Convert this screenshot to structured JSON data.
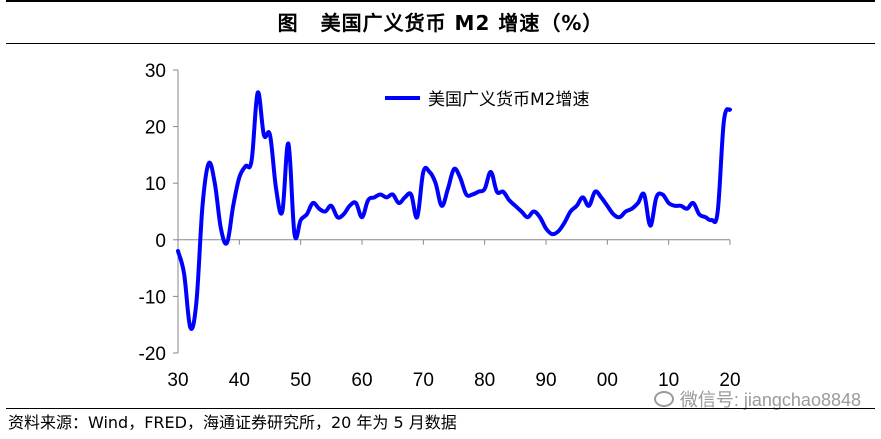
{
  "figure": {
    "label": "图",
    "title": "美国广义货币 M2 增速（%）",
    "source": "资料来源：Wind，FRED，海通证券研究所，20 年为 5 月数据",
    "watermark": "微信号: jiangchao8848"
  },
  "chart_data": {
    "type": "line",
    "title": "美国广义货币 M2 增速（%）",
    "xlabel": "",
    "ylabel": "",
    "xlim": [
      1930,
      2020
    ],
    "ylim": [
      -20,
      30
    ],
    "y_ticks": [
      -20,
      -10,
      0,
      10,
      20,
      30
    ],
    "x_ticks": [
      {
        "value": 1930,
        "label": "30"
      },
      {
        "value": 1940,
        "label": "40"
      },
      {
        "value": 1950,
        "label": "50"
      },
      {
        "value": 1960,
        "label": "60"
      },
      {
        "value": 1970,
        "label": "70"
      },
      {
        "value": 1980,
        "label": "80"
      },
      {
        "value": 1990,
        "label": "90"
      },
      {
        "value": 2000,
        "label": "00"
      },
      {
        "value": 2010,
        "label": "10"
      },
      {
        "value": 2020,
        "label": "20"
      }
    ],
    "grid": false,
    "legend": "top-left",
    "series": [
      {
        "name": "美国广义货币M2增速",
        "color": "#0000ff",
        "x": [
          1930,
          1931,
          1932,
          1933,
          1934,
          1935,
          1936,
          1937,
          1938,
          1939,
          1940,
          1941,
          1942,
          1943,
          1944,
          1945,
          1946,
          1947,
          1948,
          1949,
          1950,
          1951,
          1952,
          1953,
          1954,
          1955,
          1956,
          1957,
          1958,
          1959,
          1960,
          1961,
          1962,
          1963,
          1964,
          1965,
          1966,
          1967,
          1968,
          1969,
          1970,
          1971,
          1972,
          1973,
          1974,
          1975,
          1976,
          1977,
          1978,
          1979,
          1980,
          1981,
          1982,
          1983,
          1984,
          1985,
          1986,
          1987,
          1988,
          1989,
          1990,
          1991,
          1992,
          1993,
          1994,
          1995,
          1996,
          1997,
          1998,
          1999,
          2000,
          2001,
          2002,
          2003,
          2004,
          2005,
          2006,
          2007,
          2008,
          2009,
          2010,
          2011,
          2012,
          2013,
          2014,
          2015,
          2016,
          2017,
          2018,
          2019,
          2020
        ],
        "values": [
          -2,
          -6,
          -15.5,
          -11,
          6,
          13.5,
          10,
          2,
          -0.5,
          6,
          11,
          13,
          14,
          26,
          18.5,
          18.5,
          9,
          5,
          17,
          1,
          3.5,
          4.5,
          6.5,
          5.5,
          5,
          6,
          4,
          4.5,
          6,
          6.5,
          4,
          7,
          7.5,
          8,
          7.5,
          8,
          6.5,
          7.5,
          8,
          4,
          12,
          12,
          10,
          6,
          9,
          12.5,
          11,
          8,
          8,
          8.5,
          9,
          12,
          8.5,
          8.5,
          7,
          6,
          5,
          4,
          5,
          4,
          2,
          1,
          1.5,
          3,
          5,
          6,
          7.5,
          6,
          8.5,
          7.5,
          6,
          4.5,
          4,
          5,
          5.5,
          6.5,
          8,
          2.5,
          7.5,
          8,
          6.5,
          6,
          6,
          5.5,
          6.5,
          4.5,
          4,
          3.5,
          5,
          21,
          23
        ]
      }
    ]
  }
}
